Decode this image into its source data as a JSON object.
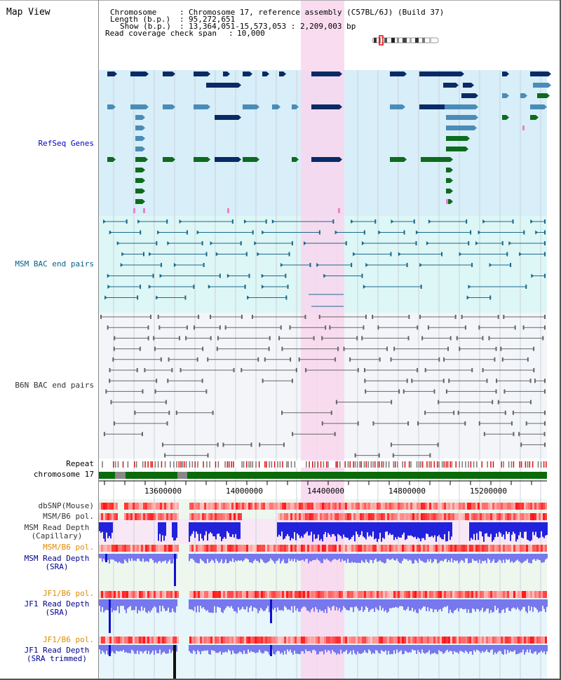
{
  "view": {
    "title": "Map View"
  },
  "header": {
    "chromosome_label": "Chromosome",
    "chromosome_value": "Chromosome 17, reference assembly (C57BL/6J) (Build 37)",
    "length_label": "Length (b.p.)",
    "length_value": "95,272,651",
    "show_label": "Show (b.p.)",
    "show_value": "13,364,051-15,573,053 : 2,209,003 bp",
    "coverage_label": "Read coverage check span",
    "coverage_value": "10,000",
    "separator": ":"
  },
  "tracks": {
    "refseq": "RefSeq Genes",
    "msm_bac": "MSM BAC end pairs",
    "b6n_bac": "B6N BAC end pairs",
    "repeat": "Repeat",
    "chromosome": "chromosome 17",
    "dbsnp": "dbSNP(Mouse)",
    "msm_b6_pol_1": "MSM/B6 pol.",
    "msm_read_depth_cap_1": "MSM Read Depth",
    "msm_read_depth_cap_2": "(Capillary)",
    "msm_b6_pol_2": "MSM/B6 pol.",
    "msm_read_depth_sra_1": "MSM Read Depth",
    "msm_read_depth_sra_2": "(SRA)",
    "jf1_b6_pol_1": "JF1/B6 pol.",
    "jf1_read_depth_sra_1": "JF1 Read Depth",
    "jf1_read_depth_sra_2": "(SRA)",
    "jf1_b6_pol_2": "JF1/B6 pol.",
    "jf1_read_depth_trim_1": "JF1 Read Depth",
    "jf1_read_depth_trim_2": "(SRA trimmed)"
  },
  "axis": {
    "ticks": [
      "13600000",
      "14000000",
      "14400000",
      "14800000",
      "15200000"
    ]
  },
  "colors": {
    "refseq_bg": "#d8eef8",
    "msm_bg": "#ddf6f6",
    "b6n_bg": "#f3f5f8",
    "highlight": "#f9d6ee",
    "gene_dark": "#0a2a66",
    "gene_mid": "#4a8cb8",
    "gene_green": "#0e6b1e",
    "chrom_green": "#0b6b0b",
    "bac_msm": "#1a6a8c",
    "bac_b6n": "#666666",
    "depth_blue": "#2222dd",
    "depth_light": "#7777ee"
  }
}
